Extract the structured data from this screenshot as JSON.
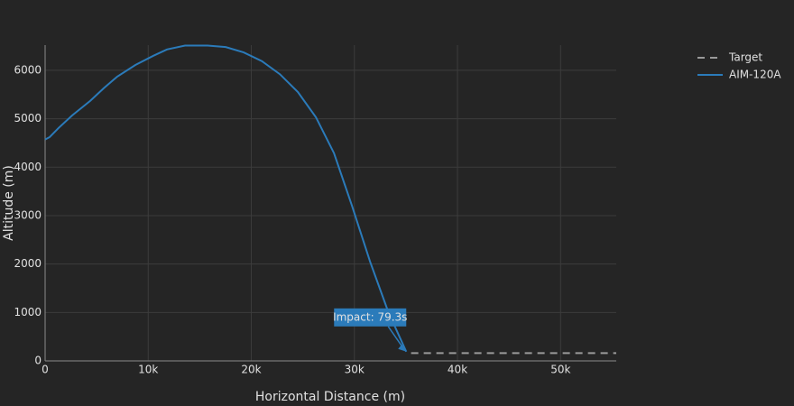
{
  "chart_data": {
    "type": "line",
    "xlabel": "Horizontal Distance (m)",
    "ylabel": "Altitude (m)",
    "xlim": [
      0,
      55400
    ],
    "ylim": [
      0,
      6520
    ],
    "xticks": [
      0,
      {
        "value": 10000,
        "label": "10k"
      },
      {
        "value": 20000,
        "label": "20k"
      },
      {
        "value": 30000,
        "label": "30k"
      },
      {
        "value": 40000,
        "label": "40k"
      },
      {
        "value": 50000,
        "label": "50k"
      }
    ],
    "yticks": [
      0,
      1000,
      2000,
      3000,
      4000,
      5000,
      6000
    ],
    "grid": true,
    "legend": "top-right-outside",
    "annotation": "Impact: 79.3s",
    "series": [
      {
        "name": "Target",
        "color": "#9a9a9a",
        "dash": true,
        "x": [
          35500,
          55400
        ],
        "values": [
          160,
          160
        ]
      },
      {
        "name": "AIM-120A",
        "color": "#2b7bba",
        "dash": false,
        "x": [
          0,
          440,
          1310,
          2630,
          4380,
          5690,
          7000,
          8760,
          10500,
          11820,
          13570,
          15760,
          17510,
          19260,
          21020,
          22770,
          24520,
          26270,
          28020,
          29770,
          31520,
          33270,
          35030
        ],
        "values": [
          4570,
          4620,
          4810,
          5070,
          5370,
          5630,
          5870,
          6110,
          6300,
          6430,
          6510,
          6510,
          6480,
          6370,
          6190,
          5920,
          5550,
          5030,
          4290,
          3200,
          2050,
          1020,
          190
        ]
      }
    ]
  }
}
